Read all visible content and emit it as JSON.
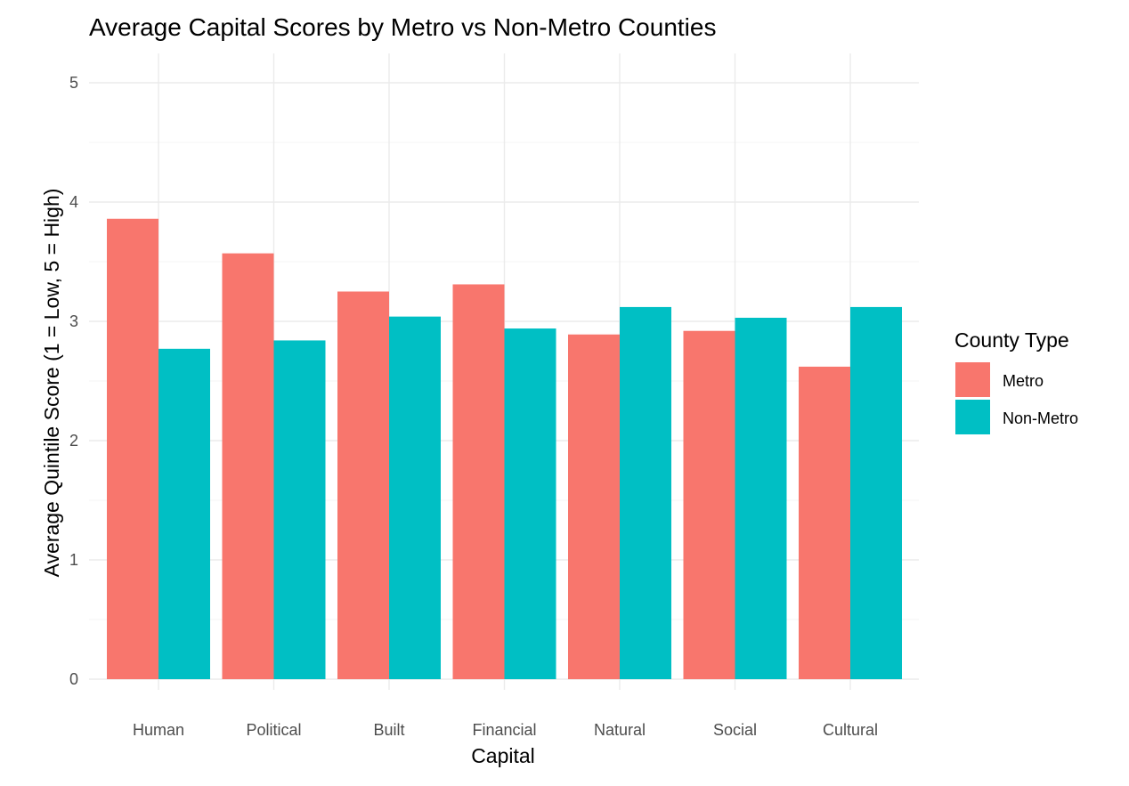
{
  "chart_data": {
    "type": "bar",
    "title": "Average Capital Scores by Metro vs Non-Metro Counties",
    "xlabel": "Capital",
    "ylabel": "Average Quintile Score (1 = Low, 5 = High)",
    "categories": [
      "Human",
      "Political",
      "Built",
      "Financial",
      "Natural",
      "Social",
      "Cultural"
    ],
    "series": [
      {
        "name": "Metro",
        "color": "#F8766D",
        "values": [
          3.86,
          3.57,
          3.25,
          3.31,
          2.89,
          2.92,
          2.62
        ]
      },
      {
        "name": "Non-Metro",
        "color": "#00BFC4",
        "values": [
          2.77,
          2.84,
          3.04,
          2.94,
          3.12,
          3.03,
          3.12
        ]
      }
    ],
    "ylim": [
      0,
      5
    ],
    "yticks": [
      "0",
      "1",
      "2",
      "3",
      "4",
      "5"
    ],
    "grid": true,
    "legend": {
      "title": "County Type",
      "placement": "right"
    }
  }
}
